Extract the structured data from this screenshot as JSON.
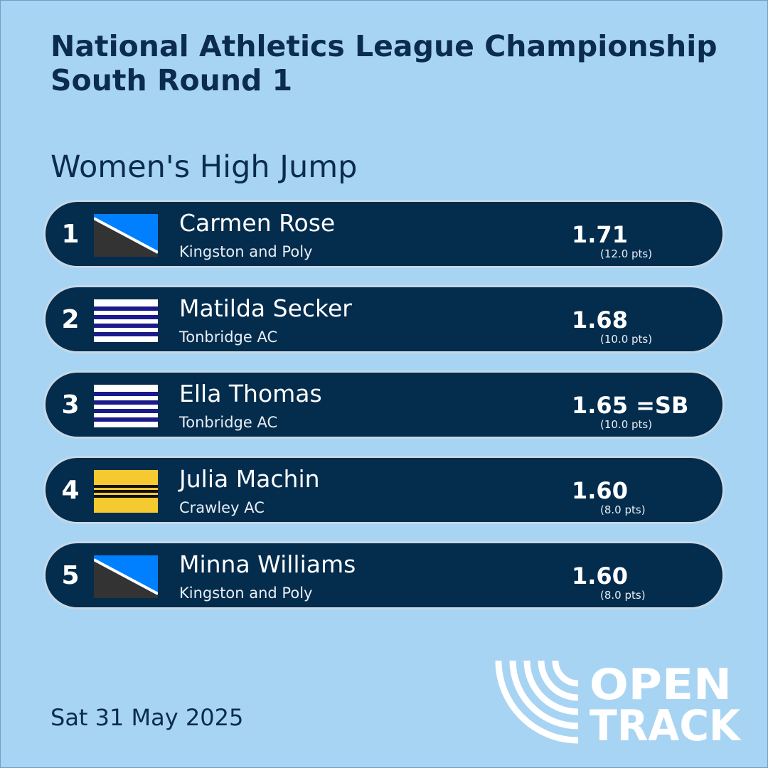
{
  "header": {
    "title_line1": "National Athletics League Championship",
    "title_line2": "South Round 1",
    "event": "Women's High Jump"
  },
  "results": [
    {
      "position": "1",
      "name": "Carmen Rose",
      "club": "Kingston and Poly",
      "performance": "1.71",
      "points": "(12.0 pts)",
      "flag": "kingston-poly-flag"
    },
    {
      "position": "2",
      "name": "Matilda Secker",
      "club": "Tonbridge AC",
      "performance": "1.68",
      "points": "(10.0 pts)",
      "flag": "tonbridge-flag"
    },
    {
      "position": "3",
      "name": "Ella Thomas",
      "club": "Tonbridge AC",
      "performance": "1.65 =SB",
      "points": "(10.0 pts)",
      "flag": "tonbridge-flag"
    },
    {
      "position": "4",
      "name": "Julia Machin",
      "club": "Crawley AC",
      "performance": "1.60",
      "points": "(8.0 pts)",
      "flag": "crawley-flag"
    },
    {
      "position": "5",
      "name": "Minna Williams",
      "club": "Kingston and Poly",
      "performance": "1.60",
      "points": "(8.0 pts)",
      "flag": "kingston-poly-flag"
    }
  ],
  "footer": {
    "date": "Sat 31 May 2025",
    "logo_text_line1": "OPEN",
    "logo_text_line2": "TRACK"
  },
  "colors": {
    "background": "#a8d4f3",
    "row_background": "#032c4d",
    "title_text": "#0b2c4e",
    "kingston_blue": "#0080ff",
    "kingston_dark": "#333333",
    "tonbridge_navy": "#1a1a8c",
    "crawley_yellow": "#f5c930"
  }
}
